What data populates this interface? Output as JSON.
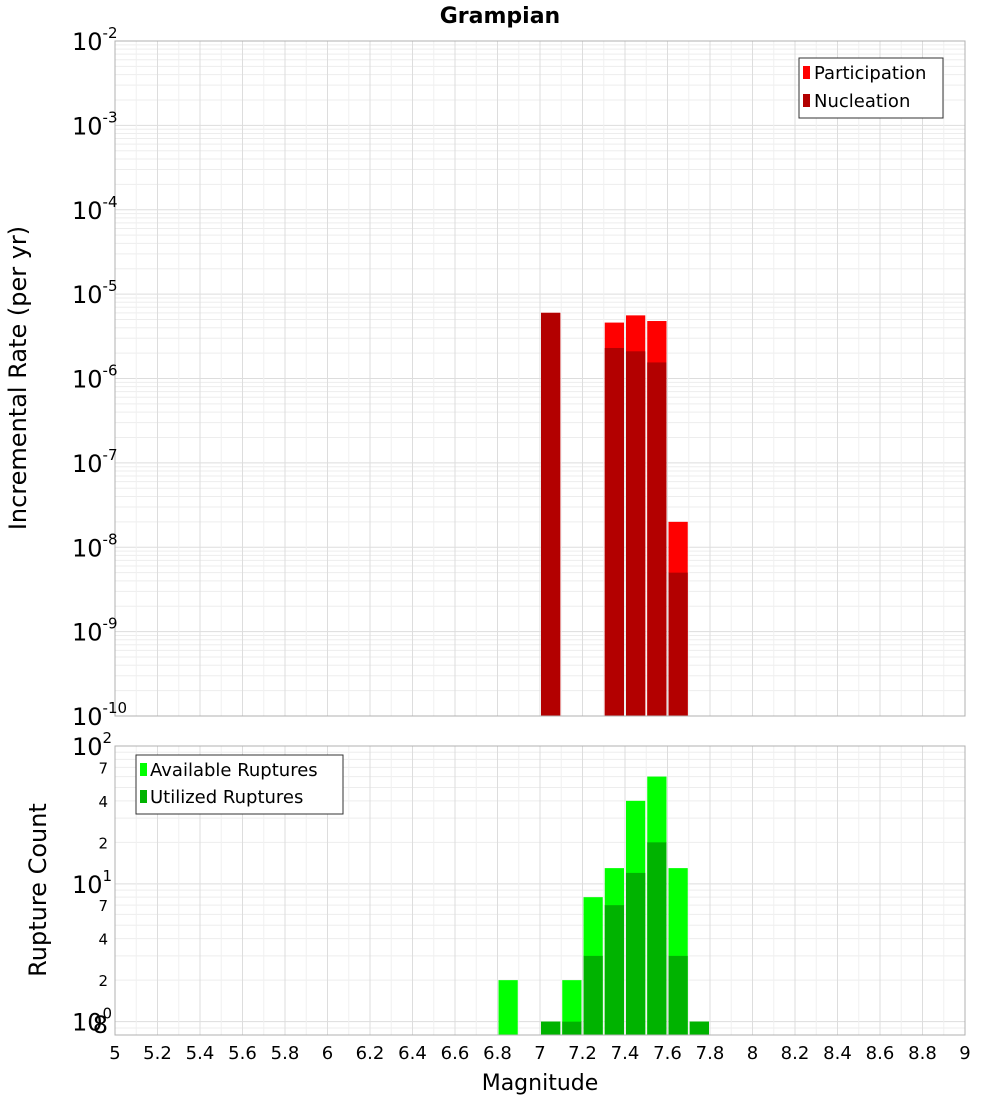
{
  "chart_data": [
    {
      "type": "bar",
      "title": "Grampian",
      "ylabel": "Incremental Rate (per yr)",
      "yscale": "log",
      "ylim": [
        1e-10,
        0.01
      ],
      "xlim": [
        5,
        9
      ],
      "yticks": [
        "-10",
        "-9",
        "-8",
        "-7",
        "-6",
        "-5",
        "-4",
        "-3",
        "-2"
      ],
      "legend_position": "top-right",
      "colors": {
        "Participation": "#ff0000",
        "Nucleation": "#b30000"
      },
      "series": [
        {
          "name": "Participation",
          "x": [
            7.05,
            7.35,
            7.45,
            7.55,
            7.65
          ],
          "values": [
            6e-06,
            4.6e-06,
            5.6e-06,
            4.8e-06,
            2e-08
          ]
        },
        {
          "name": "Nucleation",
          "x": [
            7.05,
            7.35,
            7.45,
            7.55,
            7.65
          ],
          "values": [
            6e-06,
            2.3e-06,
            2.1e-06,
            1.55e-06,
            5e-09
          ]
        }
      ]
    },
    {
      "type": "bar",
      "xlabel": "Magnitude",
      "ylabel": "Rupture Count",
      "yscale": "log",
      "ylim": [
        0.8,
        100
      ],
      "xlim": [
        5,
        9
      ],
      "ybase_ticks": [
        {
          "value": 1,
          "exp": "0"
        },
        {
          "value": 10,
          "exp": "1"
        },
        {
          "value": 100,
          "exp": "2"
        }
      ],
      "yminor_labels": [
        {
          "value": 0.8,
          "label": "8"
        },
        {
          "value": 2,
          "label": "2"
        },
        {
          "value": 4,
          "label": "4"
        },
        {
          "value": 7,
          "label": "7"
        },
        {
          "value": 20,
          "label": "2"
        },
        {
          "value": 40,
          "label": "4"
        },
        {
          "value": 70,
          "label": "7"
        }
      ],
      "xticks": [
        "5",
        "5.2",
        "5.4",
        "5.6",
        "5.8",
        "6",
        "6.2",
        "6.4",
        "6.6",
        "6.8",
        "7",
        "7.2",
        "7.4",
        "7.6",
        "7.8",
        "8",
        "8.2",
        "8.4",
        "8.6",
        "8.8",
        "9"
      ],
      "legend_position": "top-left",
      "colors": {
        "Available Ruptures": "#00ff00",
        "Utilized Ruptures": "#00b300"
      },
      "series": [
        {
          "name": "Available Ruptures",
          "x": [
            6.85,
            7.05,
            7.15,
            7.25,
            7.35,
            7.45,
            7.55,
            7.65,
            7.75
          ],
          "values": [
            2,
            1,
            2,
            8,
            13,
            40,
            60,
            13,
            1
          ]
        },
        {
          "name": "Utilized Ruptures",
          "x": [
            6.85,
            7.05,
            7.15,
            7.25,
            7.35,
            7.45,
            7.55,
            7.65,
            7.75
          ],
          "values": [
            0,
            1,
            1,
            3,
            7,
            12,
            20,
            3,
            1
          ]
        }
      ]
    }
  ]
}
